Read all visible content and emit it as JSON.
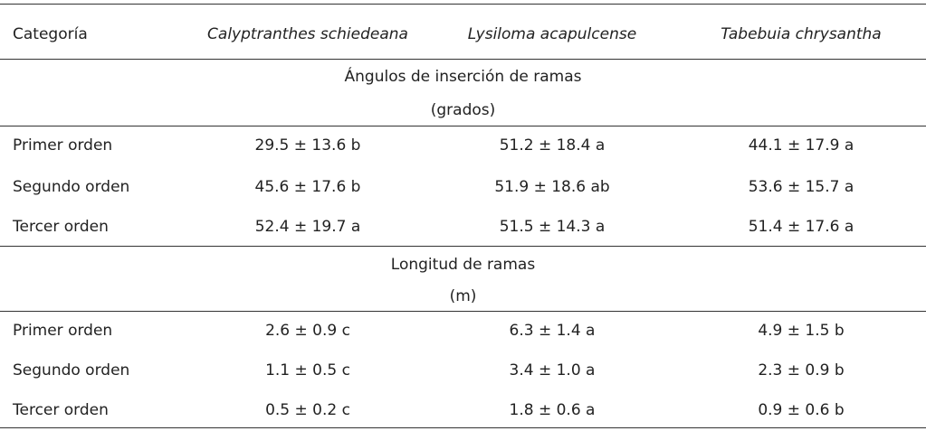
{
  "header": {
    "category": "Categoría",
    "species": [
      "Calyptranthes schiedeana",
      "Lysiloma acapulcense",
      "Tabebuia chrysantha"
    ]
  },
  "sections": [
    {
      "title": "Ángulos de inserción de ramas",
      "unit": "(grados)",
      "rows": [
        {
          "label": "Primer orden",
          "values": [
            "29.5 ± 13.6 b",
            "51.2 ± 18.4 a",
            "44.1 ± 17.9 a"
          ]
        },
        {
          "label": "Segundo orden",
          "values": [
            "45.6 ± 17.6 b",
            "51.9 ± 18.6 ab",
            "53.6 ± 15.7 a"
          ]
        },
        {
          "label": "Tercer orden",
          "values": [
            "52.4 ± 19.7 a",
            "51.5 ± 14.3 a",
            "51.4 ± 17.6 a"
          ]
        }
      ]
    },
    {
      "title": "Longitud de ramas",
      "unit": "(m)",
      "rows": [
        {
          "label": "Primer orden",
          "values": [
            "2.6 ± 0.9 c",
            "6.3 ± 1.4 a",
            "4.9 ± 1.5 b"
          ]
        },
        {
          "label": "Segundo orden",
          "values": [
            "1.1 ± 0.5 c",
            "3.4 ± 1.0 a",
            "2.3 ± 0.9 b"
          ]
        },
        {
          "label": "Tercer orden",
          "values": [
            "0.5 ± 0.2 c",
            "1.8 ± 0.6 a",
            "0.9 ± 0.6 b"
          ]
        }
      ]
    }
  ]
}
